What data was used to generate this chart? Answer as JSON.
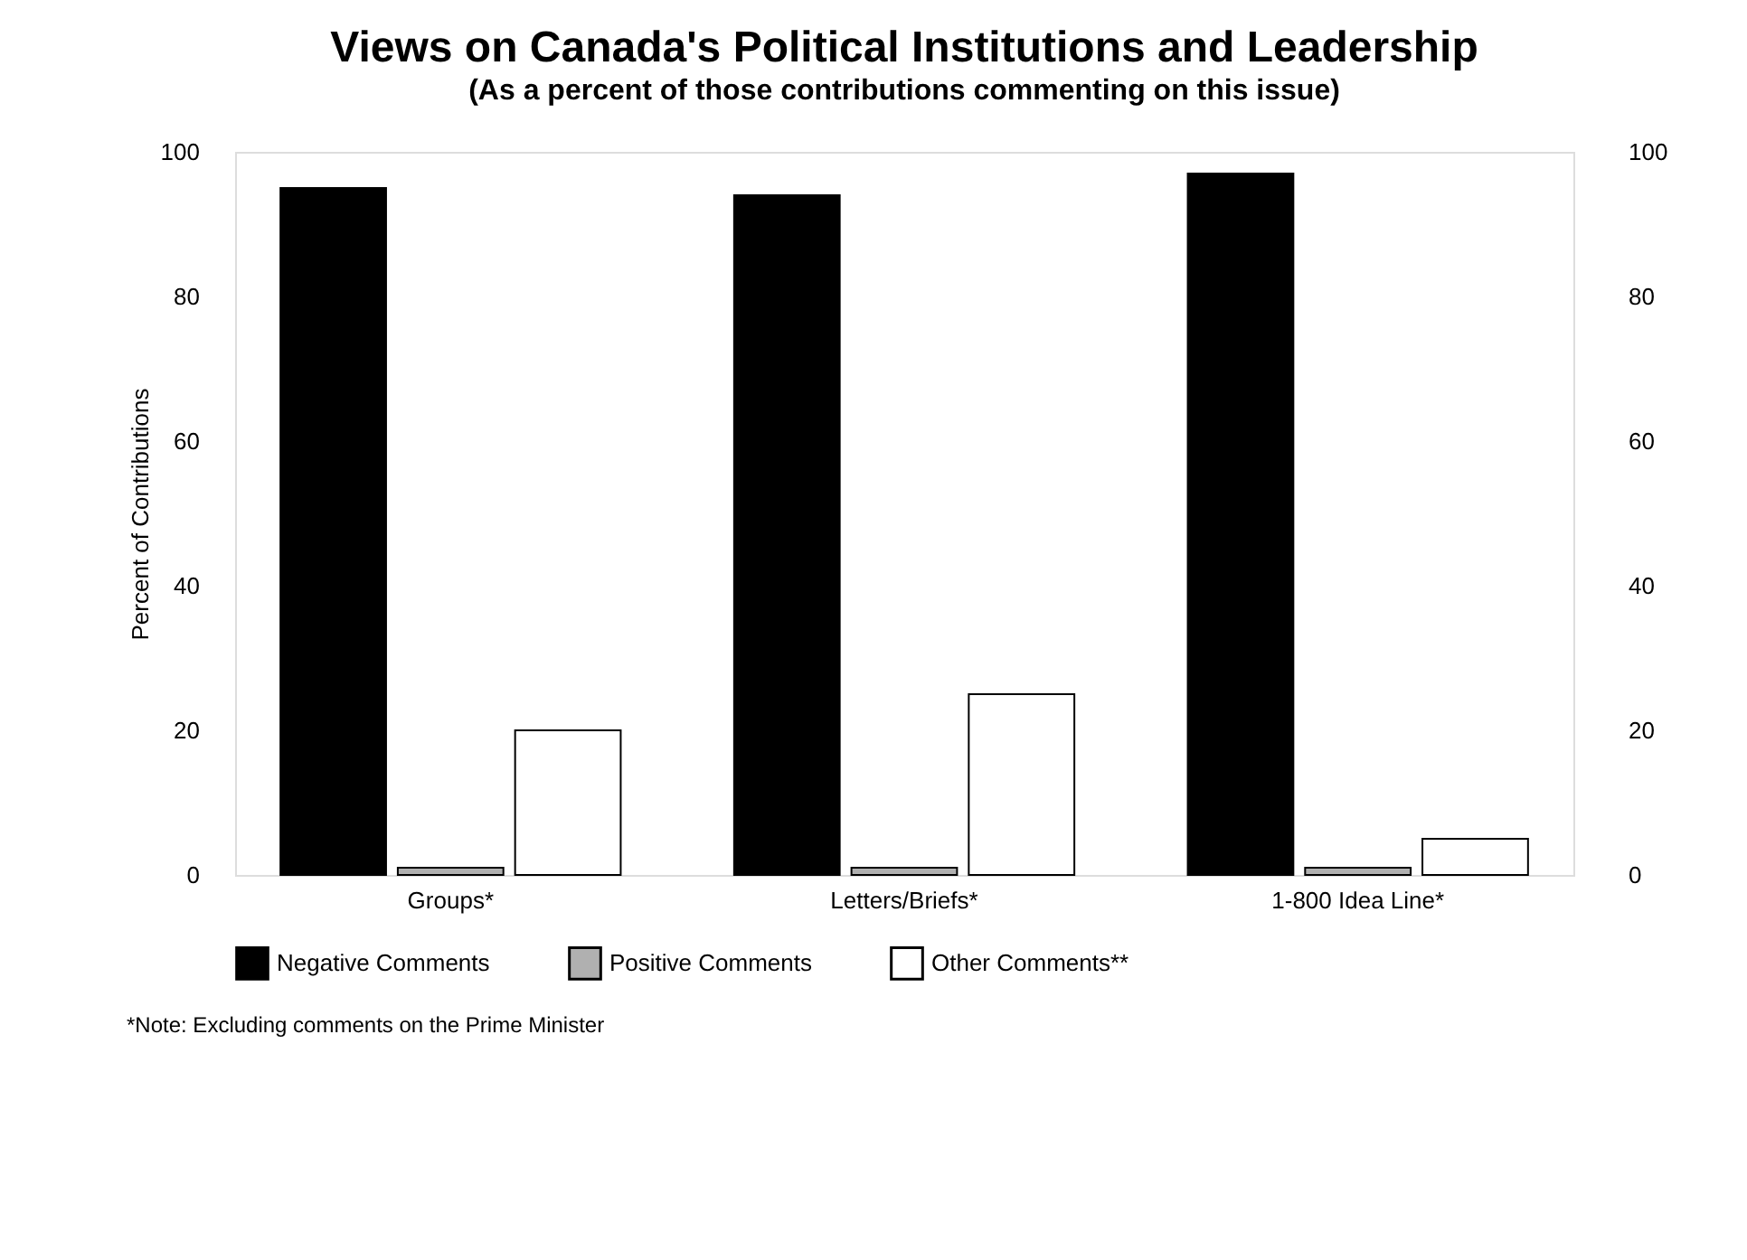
{
  "chart_data": {
    "type": "bar",
    "title": "Views on Canada's Political Institutions and Leadership",
    "subtitle": "(As a percent of those contributions commenting on this issue)",
    "ylabel": "Percent of Contributions",
    "categories": [
      "Groups*",
      "Letters/Briefs*",
      "1-800 Idea Line*"
    ],
    "series": [
      {
        "name": "Negative Comments",
        "color": "#000000",
        "values": [
          95,
          94,
          97
        ]
      },
      {
        "name": "Positive Comments",
        "color": "#b0b0b0",
        "values": [
          1,
          1,
          1
        ]
      },
      {
        "name": "Other Comments**",
        "color": "#ffffff",
        "values": [
          20,
          25,
          5
        ]
      }
    ],
    "ylim": [
      0,
      100
    ],
    "yticks": [
      0,
      20,
      40,
      60,
      80,
      100
    ],
    "y2lim": [
      0,
      100
    ],
    "y2ticks": [
      0,
      20,
      40,
      60,
      80,
      100
    ],
    "grid": false,
    "legend": "bottom",
    "annotations": [
      "*Note: Excluding comments on the Prime Minister"
    ]
  }
}
